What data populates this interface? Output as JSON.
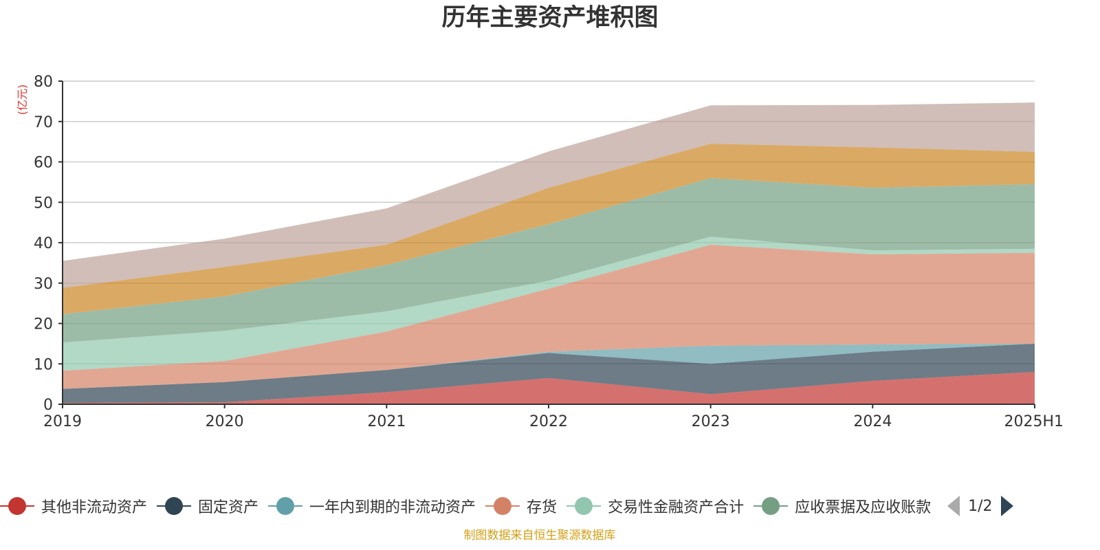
{
  "title": "历年主要资产堆积图",
  "source_note": "制图数据来自恒生聚源数据库",
  "legend_pager": {
    "text": "1/2"
  },
  "chart_data": {
    "type": "area",
    "stacked": true,
    "title": "历年主要资产堆积图",
    "ylabel": "(亿元)",
    "ylim": [
      0,
      80
    ],
    "yticks": [
      0,
      10,
      20,
      30,
      40,
      50,
      60,
      70,
      80
    ],
    "grid": true,
    "legend_position": "bottom",
    "x": [
      "2019",
      "2020",
      "2021",
      "2022",
      "2023",
      "2024",
      "2025H1"
    ],
    "series": [
      {
        "name": "其他非流动资产",
        "color": "#c23531",
        "values": [
          0.3,
          0.5,
          3.0,
          6.5,
          2.5,
          5.8,
          8.0
        ]
      },
      {
        "name": "固定资产",
        "color": "#2f4554",
        "values": [
          3.5,
          5.0,
          5.5,
          6.2,
          7.5,
          7.2,
          7.0
        ]
      },
      {
        "name": "一年内到期的非流动资产",
        "color": "#61a0a8",
        "values": [
          0.0,
          0.0,
          0.0,
          0.3,
          4.5,
          1.8,
          0.0
        ]
      },
      {
        "name": "存货",
        "color": "#d48265",
        "values": [
          4.5,
          5.2,
          9.5,
          15.6,
          25.0,
          22.3,
          22.5
        ]
      },
      {
        "name": "交易性金融资产合计",
        "color": "#91c7ae",
        "values": [
          7.0,
          7.5,
          5.0,
          2.0,
          2.0,
          1.0,
          1.0
        ]
      },
      {
        "name": "应收票据及应收账款",
        "color": "#749f83",
        "values": [
          7.0,
          8.5,
          11.5,
          14.0,
          14.5,
          15.5,
          16.0
        ]
      },
      {
        "name": "",
        "color": "#ca8622",
        "values": [
          6.5,
          7.3,
          5.0,
          9.0,
          8.5,
          10.0,
          8.0
        ]
      },
      {
        "name": "",
        "color": "#bda29a",
        "values": [
          6.7,
          7.0,
          9.0,
          9.0,
          9.5,
          10.5,
          12.2
        ]
      }
    ]
  }
}
